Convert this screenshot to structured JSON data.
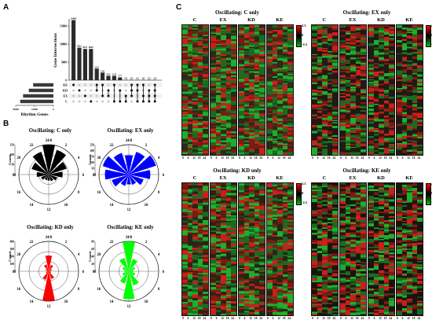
{
  "panels": {
    "A": "A",
    "B": "B",
    "C": "C"
  },
  "upset": {
    "y_axis_label": "Gene Intersections",
    "x_axis_label": "Rhythm Genes",
    "set_names": [
      "KE",
      "KD",
      "EX",
      "C"
    ],
    "y_ticks": [
      "0",
      "5000",
      "10000",
      "15000"
    ],
    "x_ticks": [
      "20000",
      "10000",
      "0"
    ],
    "bar_labels": [
      "16660",
      "9021",
      "8671",
      "8669",
      "3211",
      "2111",
      "1211",
      "1211",
      "777",
      "111",
      "111",
      "111",
      "111",
      "111",
      "111"
    ]
  },
  "rose_plots": [
    {
      "title": "Oscillating: C only",
      "color": "#000000",
      "radial_label": "Counts",
      "radial_ticks": [
        "0",
        "50",
        "100",
        "150"
      ],
      "clock_labels": [
        "24/0",
        "2",
        "4",
        "6",
        "8",
        "10",
        "12",
        "14",
        "16",
        "18",
        "20",
        "22"
      ],
      "bin_counts": [
        150,
        130,
        95,
        70,
        45,
        35,
        30,
        30,
        40,
        60,
        90,
        120
      ]
    },
    {
      "title": "Oscillating: EX only",
      "color": "#0000ff",
      "radial_label": "Counts",
      "radial_ticks": [
        "0",
        "50",
        "100",
        "150",
        "200",
        "250"
      ],
      "clock_labels": [
        "24/0",
        "2",
        "4",
        "6",
        "8",
        "10",
        "12",
        "14",
        "16",
        "18",
        "20",
        "22"
      ],
      "bin_counts": [
        160,
        200,
        240,
        180,
        130,
        90,
        80,
        100,
        150,
        200,
        230,
        190
      ]
    },
    {
      "title": "Oscillating: KD only",
      "color": "#ff0000",
      "radial_label": "Counts",
      "radial_ticks": [
        "0",
        "100",
        "200",
        "300",
        "400"
      ],
      "clock_labels": [
        "24/0",
        "2",
        "4",
        "6",
        "8",
        "10",
        "12",
        "14",
        "16",
        "18",
        "20",
        "22"
      ],
      "bin_counts": [
        210,
        90,
        45,
        25,
        35,
        110,
        400,
        120,
        40,
        25,
        45,
        95
      ]
    },
    {
      "title": "Oscillating: KE only",
      "color": "#00ff00",
      "radial_label": "Counts",
      "radial_ticks": [
        "0",
        "20",
        "40",
        "60",
        "80"
      ],
      "clock_labels": [
        "24/0",
        "2",
        "4",
        "6",
        "8",
        "10",
        "12",
        "14",
        "16",
        "18",
        "20",
        "22"
      ],
      "bin_counts": [
        80,
        35,
        18,
        12,
        18,
        40,
        75,
        35,
        18,
        12,
        18,
        38
      ]
    }
  ],
  "heatmaps": [
    {
      "title": "Oscillating: C only",
      "conditions": [
        "C",
        "EX",
        "KD",
        "KE"
      ],
      "time_ticks": [
        "0",
        "6",
        "12",
        "18",
        "24"
      ],
      "colorbar": {
        "max": "2.5",
        "mid": "0",
        "min": "-2.5"
      }
    },
    {
      "title": "Oscillating: EX only",
      "conditions": [
        "C",
        "EX",
        "KD",
        "KE"
      ],
      "time_ticks": [
        "0",
        "6",
        "12",
        "18",
        "24"
      ],
      "colorbar": {
        "max": "2.5",
        "mid": "0",
        "min": "-2.5"
      }
    },
    {
      "title": "Oscillating: KD only",
      "conditions": [
        "C",
        "EX",
        "KD",
        "KE"
      ],
      "time_ticks": [
        "0",
        "6",
        "12",
        "18",
        "24"
      ],
      "colorbar": {
        "max": "2.5",
        "mid": "0",
        "min": "-2.5"
      }
    },
    {
      "title": "Oscillating: KE only",
      "conditions": [
        "C",
        "EX",
        "KD",
        "KE"
      ],
      "time_ticks": [
        "0",
        "6",
        "12",
        "18",
        "24"
      ],
      "colorbar": {
        "max": "2.5",
        "mid": "0",
        "min": "-2.5"
      }
    }
  ]
}
